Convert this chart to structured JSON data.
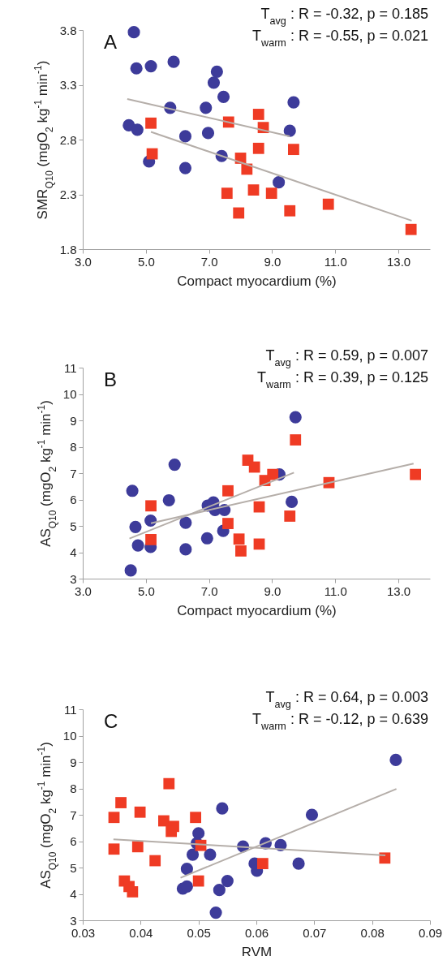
{
  "chart_data": [
    {
      "type": "scatter",
      "xlabel": "Compact myocardium (%)",
      "ylabel": "SMR$_{Q10}$ (mgO$_{2}$ kg$^{-1}$ min$^{-1}$)",
      "annotations": [
        "A",
        "T$_{avg}$ : R = -0.32, p = 0.185",
        "T$_{warm}$ : R = -0.55, p = 0.021"
      ],
      "xlim": [
        3,
        14
      ],
      "xticks": [
        {
          "value": 3,
          "label": "3.0"
        },
        {
          "value": 5,
          "label": "5.0"
        },
        {
          "value": 7,
          "label": "7.0"
        },
        {
          "value": 9,
          "label": "9.0"
        },
        {
          "value": 11,
          "label": "11.0"
        },
        {
          "value": 13,
          "label": "13.0"
        }
      ],
      "ylim": [
        1.8,
        3.8
      ],
      "yticks": [
        1.8,
        2.3,
        2.8,
        3.3,
        3.8
      ],
      "grid": false,
      "series": [
        {
          "color": "#3d3b9a",
          "marker": "circle",
          "x": [
            4.62,
            4.7,
            5.16,
            5.88,
            7.25,
            7.15,
            7.46,
            9.68,
            5.77,
            6.9,
            4.46,
            4.73,
            6.25,
            6.97,
            9.56,
            7.4,
            5.1,
            6.25,
            9.21
          ],
          "values": [
            3.78,
            3.45,
            3.47,
            3.51,
            3.42,
            3.32,
            3.19,
            3.14,
            3.09,
            3.09,
            2.93,
            2.89,
            2.83,
            2.86,
            2.88,
            2.65,
            2.6,
            2.54,
            2.41
          ]
        },
        {
          "color": "#ef3b24",
          "marker": "square",
          "x": [
            5.16,
            5.2,
            7.62,
            8.57,
            8.72,
            8.57,
            9.68,
            8.0,
            8.2,
            7.57,
            8.41,
            8.98,
            7.94,
            9.56,
            10.78,
            13.4
          ],
          "values": [
            2.95,
            2.67,
            2.96,
            3.03,
            2.91,
            2.72,
            2.71,
            2.63,
            2.53,
            2.31,
            2.34,
            2.31,
            2.13,
            2.15,
            2.21,
            1.98
          ]
        },
        {
          "type": "line",
          "color": "#b5aea9",
          "x": [
            4.41,
            9.56
          ],
          "values": [
            3.17,
            2.83
          ]
        },
        {
          "type": "line",
          "color": "#b5aea9",
          "x": [
            5.16,
            13.42
          ],
          "values": [
            2.87,
            2.06
          ]
        }
      ]
    },
    {
      "type": "scatter",
      "xlabel": "Compact myocardium (%)",
      "ylabel": "AS$_{Q10}$ (mgO$_{2}$ kg$^{-1}$ min$^{-1}$)",
      "annotations": [
        "B",
        "T$_{avg}$ : R = 0.59, p = 0.007",
        "T$_{warm}$ : R = 0.39, p = 0.125"
      ],
      "xlim": [
        3,
        14
      ],
      "xticks": [
        {
          "value": 3,
          "label": "3.0"
        },
        {
          "value": 5,
          "label": "5.0"
        },
        {
          "value": 7,
          "label": "7.0"
        },
        {
          "value": 9,
          "label": "9.0"
        },
        {
          "value": 11,
          "label": "11.0"
        },
        {
          "value": 13,
          "label": "13.0"
        }
      ],
      "ylim": [
        3,
        11
      ],
      "yticks": [
        3,
        4,
        5,
        6,
        7,
        8,
        9,
        10,
        11
      ],
      "grid": false,
      "series": [
        {
          "color": "#3d3b9a",
          "marker": "circle",
          "x": [
            4.52,
            4.57,
            4.67,
            4.75,
            5.15,
            5.15,
            5.73,
            5.91,
            6.26,
            6.26,
            6.94,
            6.96,
            7.14,
            7.19,
            7.49,
            7.45,
            9.23,
            9.62,
            9.74
          ],
          "values": [
            3.31,
            6.33,
            4.96,
            4.26,
            5.2,
            4.2,
            5.97,
            7.32,
            5.12,
            4.11,
            4.53,
            5.77,
            5.89,
            5.6,
            5.6,
            4.81,
            6.95,
            5.91,
            9.12
          ]
        },
        {
          "color": "#ef3b24",
          "marker": "square",
          "x": [
            5.16,
            5.16,
            7.6,
            7.6,
            7.95,
            8.01,
            8.23,
            8.44,
            8.59,
            8.59,
            8.77,
            9.02,
            9.56,
            9.74,
            10.8,
            13.54
          ],
          "values": [
            5.76,
            4.48,
            6.33,
            5.09,
            4.5,
            4.05,
            7.49,
            7.23,
            5.72,
            4.31,
            6.72,
            6.95,
            5.37,
            8.26,
            6.64,
            6.95
          ]
        },
        {
          "type": "line",
          "color": "#b5aea9",
          "x": [
            4.48,
            9.69
          ],
          "values": [
            4.52,
            7.02
          ]
        },
        {
          "type": "line",
          "color": "#b5aea9",
          "x": [
            5.16,
            13.48
          ],
          "values": [
            5.1,
            7.36
          ]
        }
      ]
    },
    {
      "type": "scatter",
      "xlabel": "RVM",
      "ylabel": "AS$_{Q10}$ (mgO$_{2}$ kg$^{-1}$ min$^{-1}$)",
      "annotations": [
        "C",
        "T$_{avg}$ : R = 0.64, p = 0.003",
        "T$_{warm}$ : R = -0.12, p = 0.639"
      ],
      "xlim": [
        0.03,
        0.09
      ],
      "xticks": [
        {
          "value": 0.03,
          "label": "0.03"
        },
        {
          "value": 0.04,
          "label": "0.04"
        },
        {
          "value": 0.05,
          "label": "0.05"
        },
        {
          "value": 0.06,
          "label": "0.06"
        },
        {
          "value": 0.07,
          "label": "0.07"
        },
        {
          "value": 0.08,
          "label": "0.08"
        },
        {
          "value": 0.09,
          "label": "0.09"
        }
      ],
      "ylim": [
        3,
        11
      ],
      "yticks": [
        3,
        4,
        5,
        6,
        7,
        8,
        9,
        10,
        11
      ],
      "grid": false,
      "series": [
        {
          "color": "#3d3b9a",
          "marker": "circle",
          "x": [
            0.0841,
            0.0541,
            0.0696,
            0.05,
            0.0497,
            0.049,
            0.052,
            0.0577,
            0.0616,
            0.0642,
            0.0597,
            0.0601,
            0.0673,
            0.048,
            0.055,
            0.0473,
            0.048,
            0.0536,
            0.053
          ],
          "values": [
            9.08,
            7.24,
            7.0,
            6.3,
            5.92,
            5.49,
            5.49,
            5.8,
            5.92,
            5.85,
            5.15,
            4.88,
            5.15,
            4.95,
            4.49,
            4.2,
            4.28,
            4.15,
            3.29
          ]
        },
        {
          "color": "#ef3b24",
          "marker": "square",
          "x": [
            0.0449,
            0.0366,
            0.0354,
            0.0399,
            0.044,
            0.0457,
            0.0453,
            0.0495,
            0.0504,
            0.0354,
            0.0395,
            0.0425,
            0.0611,
            0.0822,
            0.05,
            0.0372,
            0.038,
            0.0386
          ],
          "values": [
            8.18,
            7.46,
            6.9,
            7.1,
            6.77,
            6.56,
            6.37,
            6.9,
            5.84,
            5.7,
            5.79,
            5.26,
            5.15,
            5.36,
            4.49,
            4.49,
            4.28,
            4.08
          ]
        },
        {
          "type": "line",
          "color": "#b5aea9",
          "x": [
            0.0469,
            0.0842
          ],
          "values": [
            4.61,
            7.98
          ]
        },
        {
          "type": "line",
          "color": "#b5aea9",
          "x": [
            0.0353,
            0.0823
          ],
          "values": [
            6.07,
            5.46
          ]
        }
      ]
    }
  ]
}
